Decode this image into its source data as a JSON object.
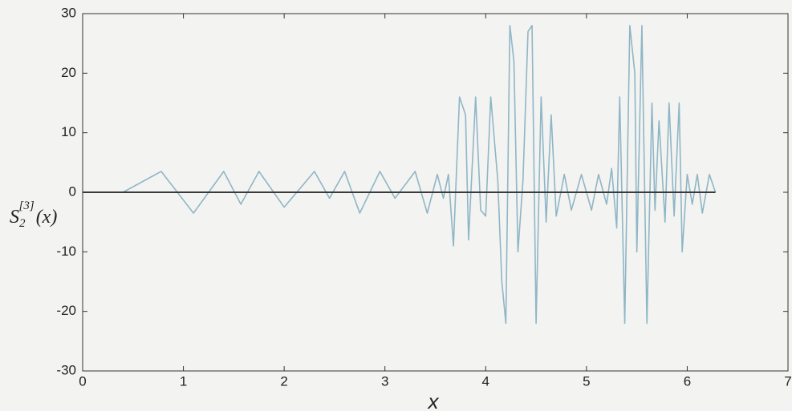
{
  "chart_data": {
    "type": "line",
    "xlabel": "x",
    "ylabel": {
      "base": "S",
      "sub": "2",
      "sup": "[3]",
      "suffix": "(x)"
    },
    "xlim": [
      0,
      7
    ],
    "xticks": [
      0,
      1,
      2,
      3,
      4,
      5,
      6,
      7
    ],
    "ylim": [
      -30,
      30
    ],
    "yticks": [
      -30,
      -20,
      -10,
      0,
      10,
      20,
      30
    ],
    "series": [
      {
        "color": "#8fb6c6",
        "x": [
          0,
          0.4,
          0.78,
          1.1,
          1.4,
          1.57,
          1.75,
          2.0,
          2.3,
          2.45,
          2.6,
          2.75,
          2.95,
          3.1,
          3.3,
          3.42,
          3.52,
          3.58,
          3.63,
          3.68,
          3.74,
          3.8,
          3.83,
          3.9,
          3.95,
          4.0,
          4.05,
          4.12,
          4.16,
          4.2,
          4.24,
          4.28,
          4.32,
          4.37,
          4.42,
          4.46,
          4.5,
          4.55,
          4.6,
          4.65,
          4.7,
          4.78,
          4.85,
          4.95,
          5.05,
          5.12,
          5.2,
          5.25,
          5.3,
          5.33,
          5.38,
          5.43,
          5.48,
          5.5,
          5.55,
          5.6,
          5.65,
          5.68,
          5.72,
          5.78,
          5.82,
          5.87,
          5.92,
          5.95,
          6.0,
          6.05,
          6.1,
          6.15,
          6.22,
          6.28
        ],
        "values": [
          0,
          0,
          3.5,
          -3.5,
          3.5,
          -2,
          3.5,
          -2.5,
          3.5,
          -1,
          3.5,
          -3.5,
          3.5,
          -1,
          3.5,
          -3.5,
          3,
          -1,
          3,
          -9,
          16,
          13,
          -8,
          16,
          -3,
          -4,
          16,
          2,
          -15,
          -22,
          28,
          22,
          -10,
          2,
          27,
          28,
          -22,
          16,
          -5,
          13,
          -4,
          3,
          -3,
          3,
          -3,
          3,
          -2,
          4,
          -6,
          16,
          -22,
          28,
          20,
          -10,
          28,
          -22,
          15,
          -3,
          12,
          -5,
          15,
          -4,
          15,
          -10,
          3,
          -2,
          3,
          -3.5,
          3,
          0
        ]
      },
      {
        "color": "#3a3a3a",
        "x": [
          0,
          6.28
        ],
        "values": [
          0,
          0
        ]
      }
    ]
  }
}
